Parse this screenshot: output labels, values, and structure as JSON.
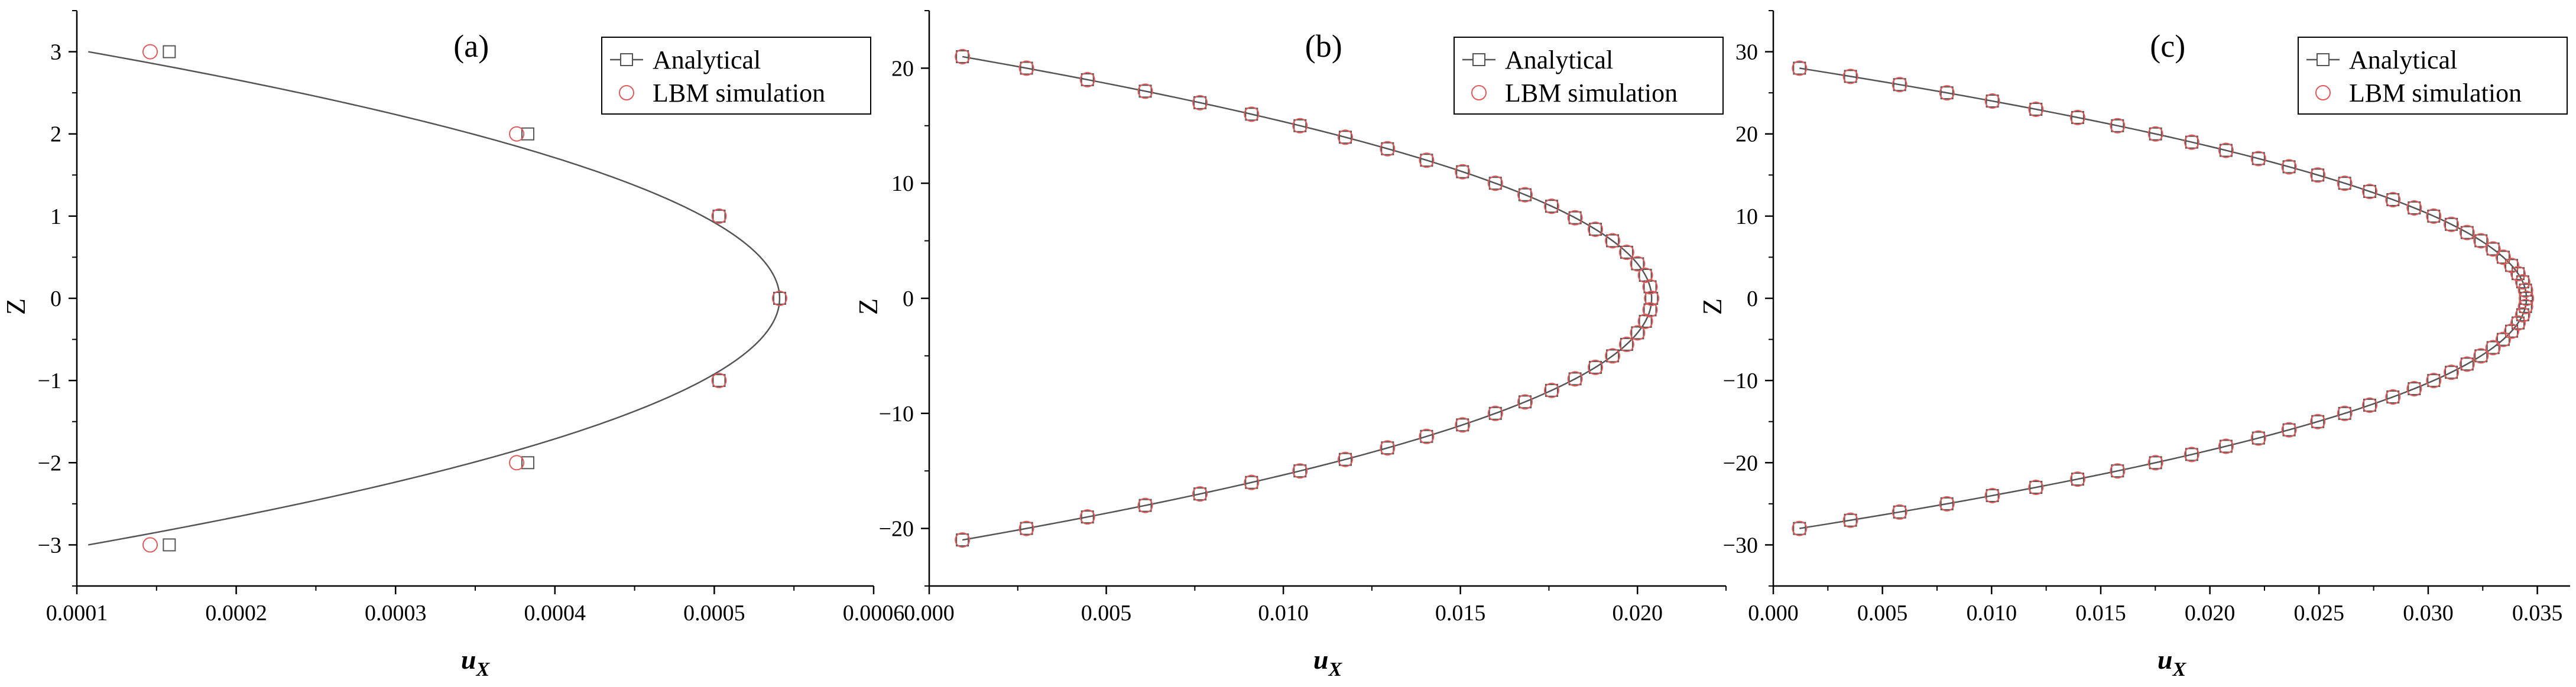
{
  "figure": {
    "colors": {
      "analytical": "#555555",
      "lbm": "#e05a5a",
      "axis": "#000000"
    }
  },
  "chart_data": [
    {
      "type": "line",
      "panel_label": "(a)",
      "xlabel": "u",
      "xlabel_sub": "X",
      "ylabel": "Z",
      "xlim": [
        0.0001,
        0.0006
      ],
      "ylim": [
        -3.5,
        3.5
      ],
      "xticks": [
        0.0001,
        0.0002,
        0.0003,
        0.0004,
        0.0005,
        0.0006
      ],
      "xtick_labels": [
        "0.0001",
        "0.0002",
        "0.0003",
        "0.0004",
        "0.0005",
        "0.0006"
      ],
      "yticks": [
        -3,
        -2,
        -1,
        0,
        1,
        2,
        3
      ],
      "ytick_labels": [
        "−3",
        "−2",
        "−1",
        "0",
        "1",
        "2",
        "3"
      ],
      "legend": [
        "Analytical",
        "LBM simulation"
      ],
      "legend_position": "top-right",
      "series": [
        {
          "name": "Analytical",
          "marker": "square",
          "curve": {
            "umax": 0.000541,
            "half_width": 3.35
          },
          "points": [
            [
              0.000158,
              3
            ],
            [
              0.000383,
              2
            ],
            [
              0.000503,
              1
            ],
            [
              0.000541,
              0
            ],
            [
              0.000503,
              -1
            ],
            [
              0.000383,
              -2
            ],
            [
              0.000158,
              -3
            ]
          ]
        },
        {
          "name": "LBM simulation",
          "marker": "circle",
          "points": [
            [
              0.000146,
              3
            ],
            [
              0.000376,
              2
            ],
            [
              0.000503,
              1
            ],
            [
              0.000541,
              0
            ],
            [
              0.000503,
              -1
            ],
            [
              0.000376,
              -2
            ],
            [
              0.000146,
              -3
            ]
          ]
        }
      ]
    },
    {
      "type": "line",
      "panel_label": "(b)",
      "xlabel": "u",
      "xlabel_sub": "X",
      "ylabel": "Z",
      "xlim": [
        0.0,
        0.0225
      ],
      "ylim": [
        -25,
        25
      ],
      "xticks": [
        0.0,
        0.005,
        0.01,
        0.015,
        0.02
      ],
      "xtick_labels": [
        "0.000",
        "0.005",
        "0.010",
        "0.015",
        "0.020"
      ],
      "yticks": [
        -20,
        -10,
        0,
        10,
        20
      ],
      "ytick_labels": [
        "−20",
        "−10",
        "0",
        "10",
        "20"
      ],
      "legend": [
        "Analytical",
        "LBM simulation"
      ],
      "legend_position": "top-right",
      "profile": {
        "umax": 0.0204,
        "half_width": 21.5,
        "z_min": -21,
        "z_max": 21,
        "z_step": 1
      }
    },
    {
      "type": "line",
      "panel_label": "(c)",
      "xlabel": "u",
      "xlabel_sub": "X",
      "ylabel": "Z",
      "xlim": [
        0.0,
        0.0365
      ],
      "ylim": [
        -35,
        35
      ],
      "xticks": [
        0.0,
        0.005,
        0.01,
        0.015,
        0.02,
        0.025,
        0.03,
        0.035
      ],
      "xtick_labels": [
        "0.000",
        "0.005",
        "0.010",
        "0.015",
        "0.020",
        "0.025",
        "0.030",
        "0.035"
      ],
      "yticks": [
        -30,
        -20,
        -10,
        0,
        10,
        20,
        30
      ],
      "ytick_labels": [
        "−30",
        "−20",
        "−10",
        "0",
        "10",
        "20",
        "30"
      ],
      "legend": [
        "Analytical",
        "LBM simulation"
      ],
      "legend_position": "top-right",
      "profile": {
        "umax": 0.0345,
        "half_width": 28.5,
        "z_min": -28,
        "z_max": 28,
        "z_step": 1
      }
    }
  ]
}
